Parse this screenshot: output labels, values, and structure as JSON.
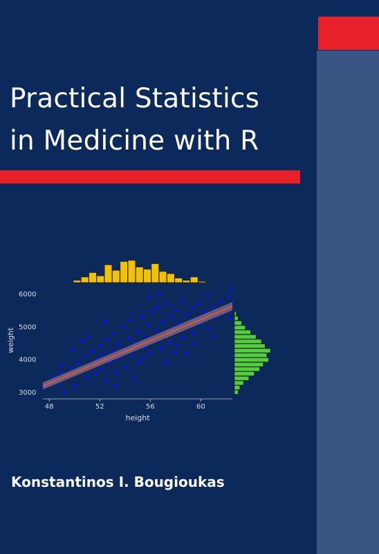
{
  "book": {
    "title_line1": "Practical Statistics",
    "title_line2": "in Medicine with R",
    "author": "Konstantinos I. Bougioukas"
  },
  "colors": {
    "background": "#0b2a5b",
    "spine": "#3a5584",
    "accent_red": "#e8202a",
    "points": "#1010ee",
    "fit_line": "#d05a3a",
    "top_histogram": "#f2c200",
    "side_histogram": "#4fd03a"
  },
  "chart_data": {
    "type": "scatter",
    "xlabel": "height",
    "ylabel": "weight",
    "x_ticks": [
      "48",
      "52",
      "56",
      "60"
    ],
    "y_ticks": [
      "3000",
      "4000",
      "5000",
      "6000"
    ],
    "xlim": [
      47.5,
      62.5
    ],
    "ylim": [
      2850,
      6300
    ],
    "fit_line": {
      "x": [
        47.5,
        62.5
      ],
      "y": [
        3180,
        5620
      ]
    },
    "points": [
      [
        47.6,
        3150
      ],
      [
        48.0,
        3300
      ],
      [
        48.3,
        3450
      ],
      [
        48.6,
        3250
      ],
      [
        48.9,
        3600
      ],
      [
        49.2,
        3000
      ],
      [
        49.0,
        3850
      ],
      [
        49.5,
        3500
      ],
      [
        49.7,
        3750
      ],
      [
        50.1,
        3200
      ],
      [
        50.3,
        3900
      ],
      [
        50.5,
        3650
      ],
      [
        50.8,
        4100
      ],
      [
        51.0,
        3450
      ],
      [
        51.2,
        3800
      ],
      [
        51.4,
        4250
      ],
      [
        51.6,
        3550
      ],
      [
        51.8,
        4000
      ],
      [
        52.0,
        4400
      ],
      [
        52.1,
        3700
      ],
      [
        52.3,
        4150
      ],
      [
        52.5,
        3350
      ],
      [
        52.6,
        4600
      ],
      [
        52.8,
        3900
      ],
      [
        53.0,
        4250
      ],
      [
        53.1,
        4800
      ],
      [
        53.3,
        3600
      ],
      [
        53.5,
        4450
      ],
      [
        53.6,
        4050
      ],
      [
        53.8,
        5000
      ],
      [
        54.0,
        4300
      ],
      [
        54.1,
        3750
      ],
      [
        54.3,
        4650
      ],
      [
        54.4,
        5200
      ],
      [
        54.6,
        4100
      ],
      [
        54.8,
        4500
      ],
      [
        55.0,
        4850
      ],
      [
        55.1,
        3900
      ],
      [
        55.3,
        5300
      ],
      [
        55.5,
        4350
      ],
      [
        55.6,
        4700
      ],
      [
        55.8,
        5050
      ],
      [
        56.0,
        4200
      ],
      [
        56.1,
        5450
      ],
      [
        56.3,
        4550
      ],
      [
        56.5,
        4900
      ],
      [
        56.6,
        5600
      ],
      [
        56.8,
        4350
      ],
      [
        57.0,
        5150
      ],
      [
        57.1,
        4750
      ],
      [
        57.3,
        5700
      ],
      [
        57.5,
        4500
      ],
      [
        57.6,
        5300
      ],
      [
        57.8,
        4950
      ],
      [
        58.0,
        5500
      ],
      [
        58.1,
        4400
      ],
      [
        58.3,
        5100
      ],
      [
        58.5,
        5800
      ],
      [
        58.6,
        4650
      ],
      [
        58.8,
        5350
      ],
      [
        59.0,
        5000
      ],
      [
        59.2,
        5550
      ],
      [
        59.4,
        4800
      ],
      [
        59.6,
        5250
      ],
      [
        59.8,
        5700
      ],
      [
        60.0,
        5100
      ],
      [
        60.3,
        5450
      ],
      [
        60.6,
        4950
      ],
      [
        60.9,
        5600
      ],
      [
        61.2,
        5300
      ],
      [
        61.5,
        5750
      ],
      [
        61.8,
        5500
      ],
      [
        62.2,
        5900
      ],
      [
        62.4,
        6150
      ],
      [
        62.3,
        5250
      ],
      [
        49.8,
        4300
      ],
      [
        51.1,
        4700
      ],
      [
        53.2,
        3200
      ],
      [
        54.7,
        3400
      ],
      [
        55.9,
        5900
      ],
      [
        57.2,
        3900
      ],
      [
        58.9,
        4200
      ],
      [
        60.5,
        5950
      ],
      [
        56.7,
        6000
      ],
      [
        52.4,
        5150
      ],
      [
        50.6,
        4550
      ],
      [
        55.4,
        4050
      ],
      [
        57.9,
        4200
      ],
      [
        59.5,
        4450
      ],
      [
        61.0,
        4700
      ]
    ],
    "top_histogram": [
      0.1,
      0.25,
      0.45,
      0.3,
      0.8,
      0.55,
      0.95,
      1.0,
      0.7,
      0.6,
      0.85,
      0.5,
      0.4,
      0.2,
      0.1,
      0.25,
      0.05
    ],
    "side_histogram": [
      0.05,
      0.1,
      0.2,
      0.3,
      0.45,
      0.6,
      0.75,
      0.85,
      1.0,
      0.9,
      0.95,
      0.8,
      0.7,
      0.55,
      0.4,
      0.25,
      0.15,
      0.1
    ]
  }
}
